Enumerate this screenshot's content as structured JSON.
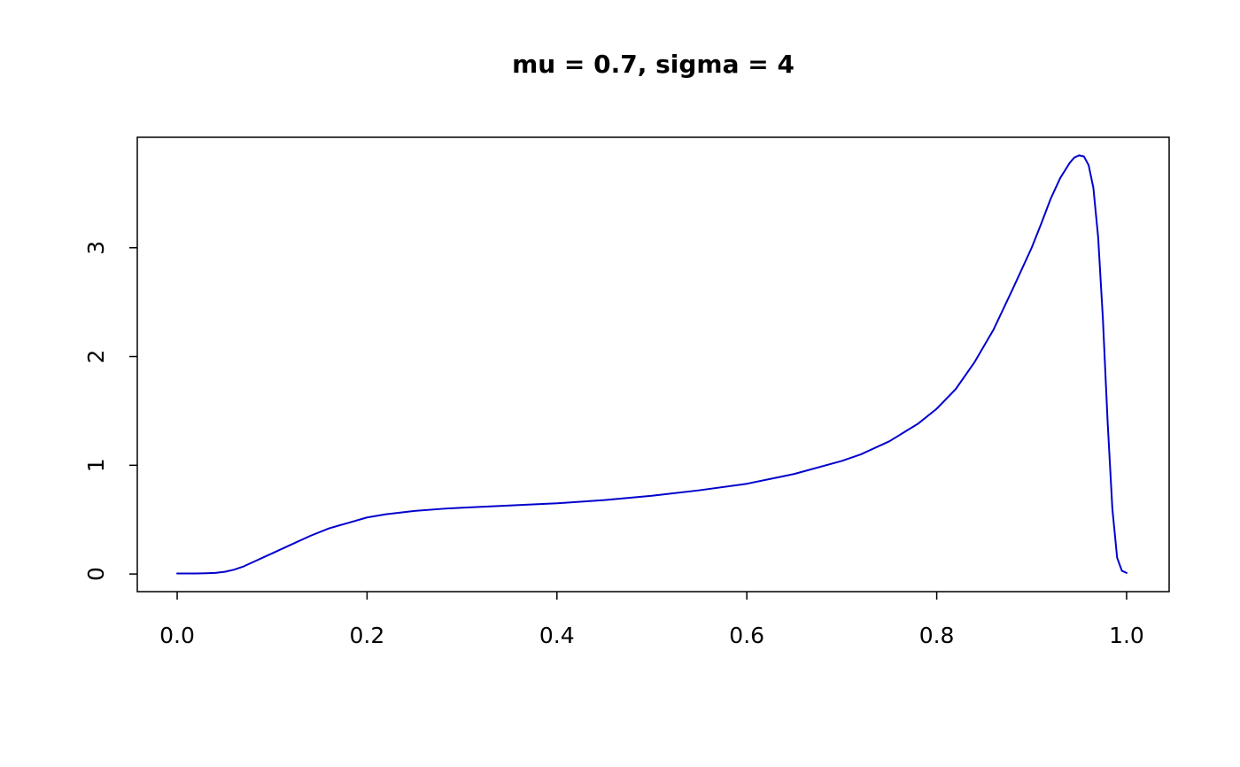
{
  "chart_data": {
    "type": "line",
    "title": "mu = 0.7, sigma = 4",
    "xlabel": "",
    "ylabel": "",
    "grid": false,
    "legend": "none",
    "line_color": "#0000cc",
    "axis_color": "#000000",
    "xlim": [
      -0.042,
      1.0448
    ],
    "ylim": [
      -0.162,
      4.016
    ],
    "xticks": [
      0.0,
      0.2,
      0.4,
      0.6,
      0.8,
      1.0
    ],
    "xtick_labels": [
      "0.0",
      "0.2",
      "0.4",
      "0.6",
      "0.8",
      "1.0"
    ],
    "yticks": [
      0,
      1,
      2,
      3
    ],
    "ytick_labels": [
      "0",
      "1",
      "2",
      "3"
    ],
    "x": [
      0,
      0.01,
      0.02,
      0.03,
      0.04,
      0.05,
      0.06,
      0.07,
      0.08,
      0.09,
      0.1,
      0.12,
      0.14,
      0.16,
      0.18,
      0.2,
      0.22,
      0.25,
      0.28,
      0.3,
      0.35,
      0.4,
      0.45,
      0.5,
      0.55,
      0.6,
      0.65,
      0.7,
      0.72,
      0.75,
      0.78,
      0.8,
      0.82,
      0.84,
      0.86,
      0.88,
      0.9,
      0.91,
      0.92,
      0.93,
      0.94,
      0.945,
      0.95,
      0.955,
      0.96,
      0.965,
      0.97,
      0.975,
      0.98,
      0.985,
      0.99,
      0.995,
      1.0
    ],
    "y": [
      0.005,
      0.005,
      0.005,
      0.007,
      0.01,
      0.02,
      0.04,
      0.07,
      0.11,
      0.15,
      0.19,
      0.27,
      0.35,
      0.42,
      0.47,
      0.52,
      0.55,
      0.58,
      0.6,
      0.61,
      0.63,
      0.65,
      0.68,
      0.72,
      0.77,
      0.83,
      0.92,
      1.04,
      1.1,
      1.22,
      1.38,
      1.52,
      1.7,
      1.95,
      2.25,
      2.62,
      3.0,
      3.22,
      3.45,
      3.64,
      3.78,
      3.83,
      3.85,
      3.84,
      3.76,
      3.55,
      3.1,
      2.35,
      1.4,
      0.6,
      0.15,
      0.03,
      0.01
    ]
  }
}
